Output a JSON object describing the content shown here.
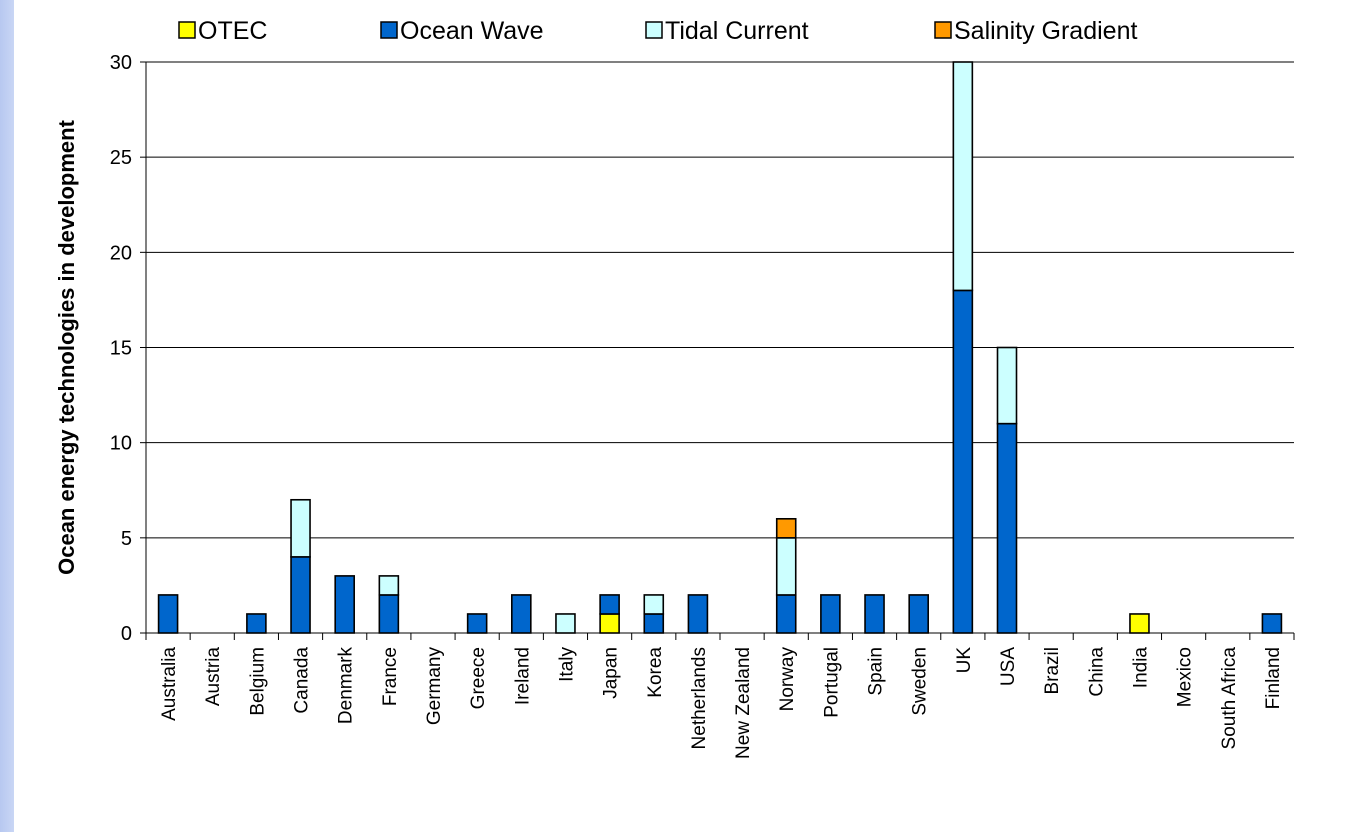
{
  "chart_data": {
    "type": "bar",
    "stacked": true,
    "ylabel": "Ocean energy technologies in development",
    "xlabel": "",
    "ylim": [
      0,
      30
    ],
    "yticks": [
      0,
      5,
      10,
      15,
      20,
      25,
      30
    ],
    "grid": true,
    "legend_position": "top",
    "categories": [
      "Australia",
      "Austria",
      "Belgium",
      "Canada",
      "Denmark",
      "France",
      "Germany",
      "Greece",
      "Ireland",
      "Italy",
      "Japan",
      "Korea",
      "Netherlands",
      "New Zealand",
      "Norway",
      "Portugal",
      "Spain",
      "Sweden",
      "UK",
      "USA",
      "Brazil",
      "China",
      "India",
      "Mexico",
      "South Africa",
      "Finland"
    ],
    "series": [
      {
        "name": "OTEC",
        "color": "#ffff00",
        "values": [
          0,
          0,
          0,
          0,
          0,
          0,
          0,
          0,
          0,
          0,
          1,
          0,
          0,
          0,
          0,
          0,
          0,
          0,
          0,
          0,
          0,
          0,
          1,
          0,
          0,
          0
        ]
      },
      {
        "name": "Ocean Wave",
        "color": "#0066cc",
        "values": [
          2,
          0,
          1,
          4,
          3,
          2,
          0,
          1,
          2,
          0,
          1,
          1,
          2,
          0,
          2,
          2,
          2,
          2,
          18,
          11,
          0,
          0,
          0,
          0,
          0,
          1
        ]
      },
      {
        "name": "Tidal Current",
        "color": "#ccffff",
        "values": [
          0,
          0,
          0,
          3,
          0,
          1,
          0,
          0,
          0,
          1,
          0,
          1,
          0,
          0,
          3,
          0,
          0,
          0,
          12,
          4,
          0,
          0,
          0,
          0,
          0,
          0
        ]
      },
      {
        "name": "Salinity Gradient",
        "color": "#ff9900",
        "values": [
          0,
          0,
          0,
          0,
          0,
          0,
          0,
          0,
          0,
          0,
          0,
          0,
          0,
          0,
          1,
          0,
          0,
          0,
          0,
          0,
          0,
          0,
          0,
          0,
          0,
          0
        ]
      }
    ]
  }
}
